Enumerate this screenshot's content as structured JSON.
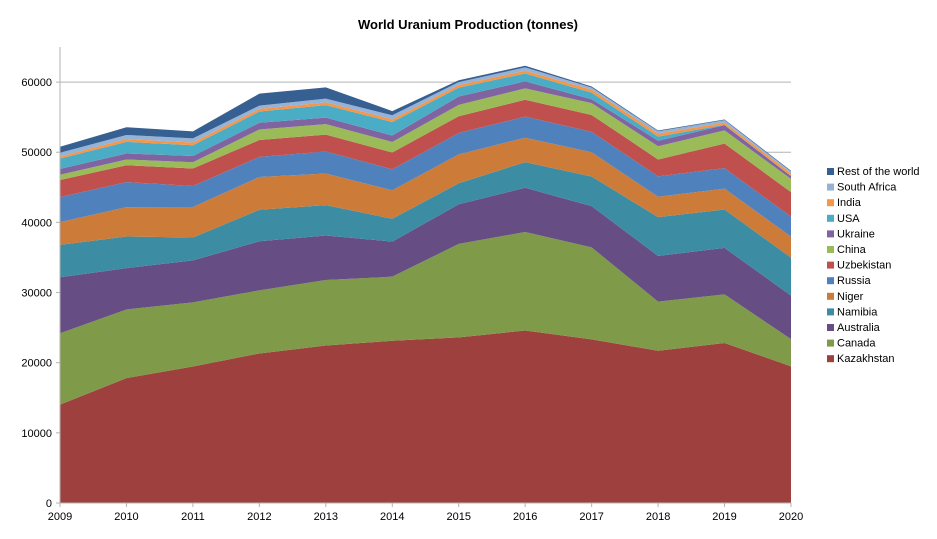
{
  "chart_data": {
    "type": "area",
    "stacked": true,
    "title": "World Uranium Production (tonnes)",
    "xlabel": "",
    "ylabel": "",
    "x": [
      "2009",
      "2010",
      "2011",
      "2012",
      "2013",
      "2014",
      "2015",
      "2016",
      "2017",
      "2018",
      "2019",
      "2020"
    ],
    "ylim": [
      0,
      65000
    ],
    "yticks": [
      0,
      10000,
      20000,
      30000,
      40000,
      50000,
      60000
    ],
    "grid": true,
    "legend_position": "right",
    "series": [
      {
        "name": "Kazakhstan",
        "color": "#9E413E",
        "values": [
          14020,
          17803,
          19451,
          21317,
          22451,
          23127,
          23607,
          24586,
          23321,
          21705,
          22808,
          19477
        ]
      },
      {
        "name": "Canada",
        "color": "#7F9A48",
        "values": [
          10173,
          9783,
          9145,
          8999,
          9331,
          9134,
          13325,
          14039,
          13116,
          7001,
          6938,
          3885
        ]
      },
      {
        "name": "Australia",
        "color": "#664E85",
        "values": [
          7982,
          5900,
          5983,
          6991,
          6350,
          5001,
          5654,
          6315,
          5882,
          6517,
          6613,
          6203
        ]
      },
      {
        "name": "Namibia",
        "color": "#3C8DA3",
        "values": [
          4626,
          4496,
          3258,
          4495,
          4323,
          3255,
          2993,
          3654,
          4224,
          5525,
          5476,
          5413
        ]
      },
      {
        "name": "Niger",
        "color": "#CC7B38",
        "values": [
          3243,
          4198,
          4351,
          4667,
          4518,
          4057,
          4116,
          3479,
          3449,
          2911,
          2983,
          2991
        ]
      },
      {
        "name": "Russia",
        "color": "#4F81BD",
        "values": [
          3564,
          3562,
          2993,
          2872,
          3135,
          2990,
          3055,
          3004,
          2917,
          2904,
          2911,
          2846
        ]
      },
      {
        "name": "Uzbekistan",
        "color": "#C0504D",
        "values": [
          2429,
          2400,
          2500,
          2400,
          2400,
          2400,
          2385,
          2404,
          2404,
          2404,
          3500,
          3500
        ]
      },
      {
        "name": "China",
        "color": "#9BBB59",
        "values": [
          750,
          827,
          885,
          1500,
          1500,
          1500,
          1616,
          1616,
          1692,
          1885,
          1885,
          1885
        ]
      },
      {
        "name": "Ukraine",
        "color": "#8064A2",
        "values": [
          840,
          850,
          890,
          960,
          922,
          926,
          1200,
          1005,
          550,
          790,
          744,
          400
        ]
      },
      {
        "name": "USA",
        "color": "#4BACC6",
        "values": [
          1453,
          1660,
          1537,
          1596,
          1792,
          1919,
          1256,
          1125,
          940,
          582,
          58,
          6
        ]
      },
      {
        "name": "India",
        "color": "#F79646",
        "values": [
          290,
          400,
          400,
          385,
          385,
          385,
          385,
          385,
          421,
          423,
          308,
          400
        ]
      },
      {
        "name": "South Africa",
        "color": "#95B3D7",
        "values": [
          563,
          583,
          582,
          465,
          531,
          573,
          393,
          490,
          308,
          346,
          346,
          250
        ]
      },
      {
        "name": "Rest of the world",
        "color": "#376092",
        "values": [
          839,
          1100,
          1000,
          1700,
          1600,
          600,
          280,
          230,
          150,
          100,
          100,
          100
        ]
      }
    ]
  }
}
